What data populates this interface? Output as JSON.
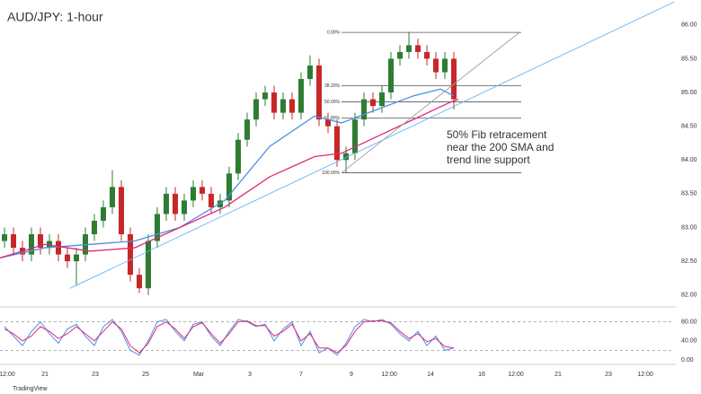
{
  "chart_data": [
    {
      "type": "candlestick",
      "title": "AUD/JPY: 1-hour",
      "annotation": [
        "50% Fib retracement",
        "near the 200 SMA and",
        "trend line support"
      ],
      "up_color": "#2e7d32",
      "down_color": "#c62828",
      "xlim": [
        0,
        150
      ],
      "ylim": [
        81.85,
        86.37
      ],
      "yticks": [
        {
          "value": 86,
          "label": "86.00"
        },
        {
          "value": 85.5,
          "label": "85.50"
        },
        {
          "value": 85,
          "label": "85.00"
        },
        {
          "value": 84.5,
          "label": "84.50"
        },
        {
          "value": 84,
          "label": "84.00"
        },
        {
          "value": 83.5,
          "label": "83.50"
        },
        {
          "value": 83,
          "label": "83.00"
        },
        {
          "value": 82.5,
          "label": "82.50"
        },
        {
          "value": 82,
          "label": "82.00"
        }
      ],
      "xticks": [
        {
          "value": 1.6,
          "label": "12:00"
        },
        {
          "value": 10,
          "label": "21"
        },
        {
          "value": 21.2,
          "label": "23"
        },
        {
          "value": 32.4,
          "label": "25"
        },
        {
          "value": 44.2,
          "label": "Mar"
        },
        {
          "value": 55.6,
          "label": "3"
        },
        {
          "value": 67,
          "label": "7"
        },
        {
          "value": 78.2,
          "label": "9"
        },
        {
          "value": 86.6,
          "label": "12:00"
        },
        {
          "value": 95.8,
          "label": "14"
        },
        {
          "value": 107.2,
          "label": "16"
        },
        {
          "value": 114.8,
          "label": "12:00"
        },
        {
          "value": 124.2,
          "label": "21"
        },
        {
          "value": 135.4,
          "label": "23"
        },
        {
          "value": 143.6,
          "label": "12:00"
        }
      ],
      "x": [
        1,
        3,
        5,
        7,
        9,
        11,
        13,
        15,
        17,
        19,
        21,
        23,
        25,
        27,
        29,
        31,
        33,
        35,
        37,
        39,
        41,
        43,
        45,
        47,
        49,
        51,
        53,
        55,
        57,
        59,
        61,
        63,
        65,
        67,
        69,
        71,
        73,
        75,
        77,
        79,
        81,
        83,
        85,
        87,
        89,
        91,
        93,
        95,
        97,
        99,
        101
      ],
      "open": [
        82.8,
        82.9,
        82.7,
        82.6,
        82.9,
        82.7,
        82.8,
        82.6,
        82.5,
        82.6,
        82.9,
        83.1,
        83.3,
        83.6,
        82.9,
        82.3,
        82.1,
        82.8,
        83.2,
        83.5,
        83.2,
        83.4,
        83.6,
        83.5,
        83.3,
        83.4,
        83.8,
        84.3,
        84.6,
        84.9,
        85.0,
        84.7,
        84.9,
        84.7,
        85.2,
        85.4,
        84.6,
        84.5,
        84.0,
        84.1,
        84.6,
        84.9,
        84.8,
        85.0,
        85.5,
        85.6,
        85.7,
        85.6,
        85.5,
        85.3,
        85.5
      ],
      "high": [
        83.0,
        83.0,
        82.8,
        83.0,
        83.0,
        82.9,
        82.9,
        82.7,
        82.7,
        83.0,
        83.2,
        83.4,
        83.85,
        83.7,
        83.0,
        82.4,
        82.9,
        83.3,
        83.6,
        83.6,
        83.5,
        83.7,
        83.7,
        83.6,
        83.5,
        83.9,
        84.4,
        84.7,
        85.0,
        85.1,
        85.1,
        85.0,
        85.0,
        85.3,
        85.55,
        85.5,
        84.7,
        84.6,
        84.2,
        84.7,
        85.0,
        85.0,
        85.1,
        85.6,
        85.7,
        85.9,
        85.8,
        85.7,
        85.6,
        85.6,
        85.6
      ],
      "low": [
        82.7,
        82.6,
        82.5,
        82.5,
        82.6,
        82.6,
        82.5,
        82.4,
        82.15,
        82.5,
        82.8,
        83.0,
        83.2,
        82.8,
        82.2,
        82.03,
        82.0,
        82.7,
        83.1,
        83.1,
        83.1,
        83.3,
        83.4,
        83.2,
        83.2,
        83.3,
        83.7,
        84.2,
        84.5,
        84.8,
        84.6,
        84.6,
        84.6,
        84.6,
        85.1,
        84.5,
        84.4,
        83.9,
        83.81,
        84.0,
        84.5,
        84.7,
        84.7,
        84.9,
        85.4,
        85.5,
        85.5,
        85.4,
        85.2,
        85.2,
        84.75
      ],
      "close": [
        82.9,
        82.7,
        82.6,
        82.9,
        82.7,
        82.8,
        82.6,
        82.5,
        82.6,
        82.9,
        83.1,
        83.3,
        83.6,
        82.9,
        82.3,
        82.1,
        82.8,
        83.2,
        83.5,
        83.2,
        83.4,
        83.6,
        83.5,
        83.3,
        83.4,
        83.8,
        84.3,
        84.6,
        84.9,
        85.0,
        84.7,
        84.9,
        84.7,
        85.2,
        85.4,
        84.6,
        84.5,
        84.0,
        84.1,
        84.6,
        84.9,
        84.8,
        85.0,
        85.5,
        85.6,
        85.7,
        85.6,
        85.5,
        85.3,
        85.5,
        84.9
      ],
      "overlays": [
        {
          "color": "#4a90e2",
          "x": [
            0,
            10,
            20,
            30,
            40,
            50,
            60,
            70,
            76,
            84,
            92,
            98,
            101
          ],
          "values": [
            82.55,
            82.7,
            82.75,
            82.8,
            83.0,
            83.4,
            84.2,
            84.65,
            84.55,
            84.75,
            84.95,
            85.05,
            84.95
          ]
        },
        {
          "color": "#e0287a",
          "x": [
            0,
            10,
            20,
            30,
            40,
            50,
            60,
            70,
            76,
            84,
            92,
            100,
            102
          ],
          "values": [
            82.55,
            82.75,
            82.65,
            82.7,
            83.0,
            83.3,
            83.75,
            84.05,
            84.1,
            84.35,
            84.6,
            84.85,
            84.9
          ]
        },
        {
          "color": "#64b5f6",
          "x": [
            15.6,
            150
          ],
          "values": [
            82.1,
            86.34
          ]
        },
        {
          "color": "#9e9e9e",
          "x": [
            76,
            115.6
          ],
          "values": [
            83.81,
            85.89
          ]
        }
      ],
      "fib": {
        "x": [
          76,
          116
        ],
        "levels": [
          {
            "value": 85.89,
            "label": "0.00%"
          },
          {
            "value": 85.1,
            "label": "38.20%"
          },
          {
            "value": 84.86,
            "label": "50.00%"
          },
          {
            "value": 84.62,
            "label": "61.80%"
          },
          {
            "value": 83.81,
            "label": "100.00%"
          }
        ]
      }
    },
    {
      "type": "line",
      "xlim": [
        0,
        150
      ],
      "ylim": [
        0,
        100
      ],
      "yticks": [
        {
          "value": 80,
          "label": "80.00"
        },
        {
          "value": 40,
          "label": "40.00"
        },
        {
          "value": 0,
          "label": "0.00"
        }
      ],
      "guides": [
        80,
        20
      ],
      "x": [
        1,
        3,
        5,
        7,
        9,
        11,
        13,
        15,
        17,
        19,
        21,
        23,
        25,
        27,
        29,
        31,
        33,
        35,
        37,
        39,
        41,
        43,
        45,
        47,
        49,
        51,
        53,
        55,
        57,
        59,
        61,
        63,
        65,
        67,
        69,
        71,
        73,
        75,
        77,
        79,
        81,
        83,
        85,
        87,
        89,
        91,
        93,
        95,
        97,
        99,
        101
      ],
      "series": [
        {
          "color": "#4a90e2",
          "values": [
            70,
            50,
            30,
            60,
            80,
            55,
            35,
            65,
            75,
            50,
            30,
            70,
            85,
            60,
            20,
            10,
            40,
            80,
            85,
            60,
            40,
            75,
            80,
            50,
            30,
            60,
            85,
            80,
            70,
            75,
            40,
            65,
            80,
            30,
            60,
            15,
            25,
            10,
            35,
            70,
            85,
            80,
            85,
            75,
            55,
            40,
            60,
            30,
            50,
            20,
            25
          ]
        },
        {
          "color": "#e0287a",
          "values": [
            65,
            55,
            40,
            50,
            70,
            60,
            45,
            55,
            70,
            55,
            40,
            60,
            80,
            65,
            30,
            15,
            35,
            70,
            80,
            65,
            45,
            70,
            78,
            55,
            35,
            55,
            80,
            82,
            72,
            72,
            50,
            60,
            75,
            40,
            55,
            25,
            25,
            15,
            30,
            60,
            80,
            82,
            82,
            78,
            60,
            45,
            55,
            38,
            45,
            28,
            25
          ]
        }
      ]
    }
  ],
  "brand": "TradingView"
}
